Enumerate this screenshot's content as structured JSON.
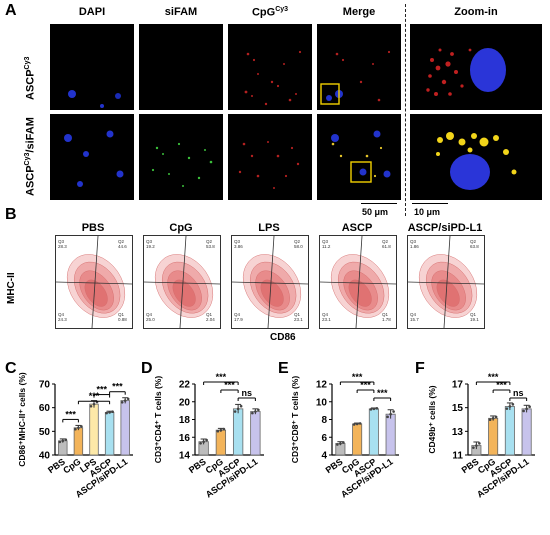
{
  "panelA": {
    "label": "A",
    "columns": [
      "DAPI",
      "siFAM",
      "CpG",
      "Merge",
      "Zoom-in"
    ],
    "cy3_sup": "Cy3",
    "rows": [
      {
        "label": "ASCP",
        "sup": "Cy3"
      },
      {
        "label": "ASCP",
        "sup": "Cy3",
        "suffix": "/siFAM"
      }
    ],
    "scale_left": "50 μm",
    "scale_right": "10 μm"
  },
  "panelB": {
    "label": "B",
    "ylabel": "MHC-II",
    "xlabel": "CD86",
    "plots": [
      {
        "title": "PBS",
        "q3": "28.3",
        "q2": "44.6",
        "q4": "24.3",
        "q1": "0.88"
      },
      {
        "title": "CpG",
        "q3": "19.2",
        "q2": "53.8",
        "q4": "25.0",
        "q1": "2.04"
      },
      {
        "title": "LPS",
        "q3": "3.86",
        "q2": "58.0",
        "q4": "17.9",
        "q1": "23.1"
      },
      {
        "title": "ASCP",
        "q3": "11.2",
        "q2": "61.8",
        "q4": "23.1",
        "q1": "1.78"
      },
      {
        "title": "ASCP/siPD-L1",
        "q3": "1.86",
        "q2": "63.8",
        "q4": "15.7",
        "q1": "19.1"
      }
    ]
  },
  "colors": {
    "PBS": "#bdbdbd",
    "CpG": "#f3b45a",
    "LPS": "#fde9a8",
    "ASCP": "#a8e0f0",
    "ASCP/siPD-L1": "#c7c3ec"
  },
  "chart_data": [
    {
      "panel": "C",
      "type": "bar",
      "ylabel": "CD86⁺MHC-II⁺ cells (%)",
      "categories": [
        "PBS",
        "CpG",
        "LPS",
        "ASCP",
        "ASCP/siPD-L1"
      ],
      "values": [
        46,
        51.5,
        61.5,
        58,
        63
      ],
      "errors": [
        0.8,
        1.0,
        1.5,
        0.5,
        1.2
      ],
      "ylim": [
        40,
        70
      ],
      "yticks": [
        40,
        50,
        60,
        70
      ],
      "significance": [
        "***",
        "***",
        "***",
        "***"
      ]
    },
    {
      "panel": "D",
      "type": "bar",
      "ylabel": "CD3⁺CD4⁺ T cells (%)",
      "categories": [
        "PBS",
        "CpG",
        "ASCP",
        "ASCP/siPD-L1"
      ],
      "values": [
        15.5,
        16.8,
        19.2,
        18.9
      ],
      "errors": [
        0.3,
        0.2,
        0.5,
        0.3
      ],
      "ylim": [
        14,
        22
      ],
      "yticks": [
        14,
        16,
        18,
        20,
        22
      ],
      "significance": [
        "***",
        "***",
        "ns"
      ]
    },
    {
      "panel": "E",
      "type": "bar",
      "ylabel": "CD3⁺CD8⁺ T cells (%)",
      "categories": [
        "PBS",
        "CpG",
        "ASCP",
        "ASCP/siPD-L1"
      ],
      "values": [
        5.3,
        7.5,
        9.2,
        8.6
      ],
      "errors": [
        0.2,
        0.1,
        0.1,
        0.5
      ],
      "ylim": [
        4,
        12
      ],
      "yticks": [
        4,
        6,
        8,
        10,
        12
      ],
      "significance": [
        "***",
        "***",
        "***"
      ]
    },
    {
      "panel": "F",
      "type": "bar",
      "ylabel": "CD49b⁺ cells (%)",
      "categories": [
        "PBS",
        "CpG",
        "ASCP",
        "ASCP/siPD-L1"
      ],
      "values": [
        11.8,
        14.1,
        15.1,
        14.9
      ],
      "errors": [
        0.3,
        0.2,
        0.3,
        0.3
      ],
      "ylim": [
        11,
        17
      ],
      "yticks": [
        11,
        13,
        15,
        17
      ],
      "significance": [
        "***",
        "***",
        "ns"
      ]
    }
  ]
}
